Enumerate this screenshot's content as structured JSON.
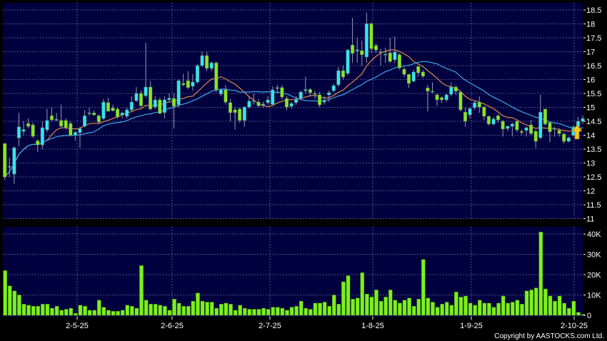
{
  "chart_data": [
    {
      "type": "candlestick",
      "ylim": [
        11,
        18.5
      ],
      "y_ticks": [
        "11",
        "11.5",
        "12",
        "12.5",
        "13",
        "13.5",
        "14",
        "14.5",
        "15",
        "15.5",
        "16",
        "16.5",
        "17",
        "17.5",
        "18",
        "18.5"
      ],
      "x_ticks": [
        "2-5-25",
        "2-6-25",
        "2-7-25",
        "1-8-25",
        "1-9-25",
        "2-10-25"
      ],
      "grid": true,
      "up_color": "#33e6f5",
      "down_color": "#88e822",
      "ma_colors": [
        "#e08a4a",
        "#3fa8e8"
      ],
      "marker": {
        "type": "up-arrow",
        "color": "#f5c518"
      },
      "ohlc": [
        [
          13.7,
          13.72,
          12.4,
          12.5
        ],
        [
          12.88,
          13.2,
          12.5,
          12.88
        ],
        [
          12.6,
          13.6,
          12.25,
          13.55
        ],
        [
          13.9,
          14.8,
          13.6,
          14.3
        ],
        [
          14.14,
          14.5,
          14.0,
          14.2
        ],
        [
          14.42,
          14.6,
          14.25,
          14.32
        ],
        [
          14.37,
          14.45,
          13.9,
          13.96
        ],
        [
          13.8,
          13.85,
          13.4,
          13.65
        ],
        [
          13.65,
          14.5,
          13.5,
          14.27
        ],
        [
          14.19,
          14.95,
          14.1,
          14.53
        ],
        [
          14.7,
          15.0,
          14.5,
          14.55
        ],
        [
          14.55,
          14.8,
          14.5,
          14.57
        ],
        [
          14.53,
          15.1,
          14.3,
          14.32
        ],
        [
          14.53,
          14.6,
          14.2,
          14.27
        ],
        [
          14.42,
          14.5,
          13.95,
          13.99
        ],
        [
          14.0,
          14.15,
          13.8,
          14.1
        ],
        [
          14.09,
          14.3,
          13.55,
          14.24
        ],
        [
          14.32,
          14.9,
          14.28,
          14.7
        ],
        [
          14.78,
          14.99,
          14.7,
          14.8
        ],
        [
          14.8,
          14.9,
          14.7,
          14.73
        ],
        [
          14.7,
          14.75,
          14.4,
          14.47
        ],
        [
          14.6,
          15.3,
          14.55,
          15.19
        ],
        [
          15.17,
          15.35,
          14.85,
          14.86
        ],
        [
          14.98,
          15.1,
          14.85,
          14.88
        ],
        [
          14.94,
          15.0,
          14.6,
          14.65
        ],
        [
          14.73,
          14.85,
          14.6,
          14.8
        ],
        [
          14.68,
          15.0,
          14.6,
          14.91
        ],
        [
          14.91,
          15.4,
          14.85,
          15.19
        ],
        [
          15.24,
          15.73,
          15.2,
          15.5
        ],
        [
          15.5,
          15.6,
          15.0,
          15.06
        ],
        [
          15.42,
          17.32,
          15.35,
          15.73
        ],
        [
          15.73,
          15.95,
          14.9,
          14.94
        ],
        [
          15.01,
          15.4,
          14.95,
          15.27
        ],
        [
          15.27,
          15.35,
          14.75,
          14.78
        ],
        [
          14.81,
          15.4,
          14.6,
          15.27
        ],
        [
          15.27,
          15.5,
          15.2,
          15.33
        ],
        [
          15.32,
          15.5,
          14.24,
          15.04
        ],
        [
          15.09,
          16.0,
          15.0,
          15.96
        ],
        [
          15.86,
          16.2,
          15.75,
          15.81
        ],
        [
          15.96,
          16.3,
          15.65,
          15.71
        ],
        [
          15.76,
          16.2,
          15.6,
          15.91
        ],
        [
          15.91,
          16.55,
          15.85,
          16.5
        ],
        [
          16.5,
          17.0,
          16.45,
          16.86
        ],
        [
          16.86,
          17.0,
          16.3,
          16.4
        ],
        [
          16.4,
          16.65,
          16.3,
          16.6
        ],
        [
          16.6,
          16.65,
          15.55,
          15.63
        ],
        [
          15.48,
          15.65,
          15.4,
          15.63
        ],
        [
          15.63,
          15.8,
          15.1,
          15.19
        ],
        [
          15.17,
          15.3,
          14.5,
          14.81
        ],
        [
          14.91,
          15.0,
          14.2,
          14.81
        ],
        [
          14.94,
          15.0,
          14.45,
          14.53
        ],
        [
          14.53,
          15.05,
          14.3,
          15.01
        ],
        [
          15.01,
          15.4,
          14.95,
          15.22
        ],
        [
          15.24,
          15.5,
          15.1,
          15.24
        ],
        [
          15.19,
          15.3,
          15.0,
          15.06
        ],
        [
          15.08,
          15.2,
          15.0,
          15.12
        ],
        [
          15.17,
          15.4,
          15.1,
          15.27
        ],
        [
          15.11,
          15.75,
          15.05,
          15.63
        ],
        [
          15.71,
          15.8,
          15.5,
          15.71
        ],
        [
          15.71,
          15.8,
          15.3,
          15.37
        ],
        [
          15.32,
          15.4,
          14.9,
          15.01
        ],
        [
          15.04,
          15.2,
          14.95,
          15.14
        ],
        [
          15.17,
          15.4,
          15.1,
          15.29
        ],
        [
          15.32,
          15.6,
          15.25,
          15.55
        ],
        [
          15.6,
          16.1,
          15.5,
          15.64
        ],
        [
          15.64,
          15.7,
          15.4,
          15.53
        ],
        [
          15.5,
          15.6,
          15.3,
          15.47
        ],
        [
          15.45,
          15.55,
          15.0,
          15.09
        ],
        [
          15.19,
          15.4,
          15.1,
          15.24
        ],
        [
          15.45,
          15.6,
          15.2,
          15.53
        ],
        [
          15.6,
          15.85,
          15.55,
          15.78
        ],
        [
          15.81,
          16.45,
          15.75,
          16.32
        ],
        [
          16.32,
          16.5,
          16.0,
          16.09
        ],
        [
          16.22,
          17.1,
          16.15,
          17.06
        ],
        [
          17.24,
          18.22,
          16.6,
          16.94
        ],
        [
          17.03,
          17.5,
          16.6,
          17.07
        ],
        [
          17.04,
          17.4,
          16.5,
          16.89
        ],
        [
          16.81,
          18.4,
          16.6,
          18.01
        ],
        [
          18.01,
          18.05,
          16.95,
          17.11
        ],
        [
          17.22,
          17.3,
          16.95,
          17.06
        ],
        [
          17.0,
          17.1,
          16.5,
          17.0
        ],
        [
          16.91,
          17.15,
          16.6,
          16.91
        ],
        [
          16.96,
          17.5,
          16.6,
          16.65
        ],
        [
          16.71,
          17.55,
          16.6,
          16.99
        ],
        [
          16.89,
          16.95,
          16.35,
          16.42
        ],
        [
          16.37,
          16.45,
          16.1,
          16.19
        ],
        [
          16.19,
          16.2,
          15.7,
          15.86
        ],
        [
          15.94,
          16.35,
          15.9,
          16.27
        ],
        [
          16.47,
          16.5,
          16.1,
          16.24
        ],
        [
          16.27,
          16.35,
          16.05,
          16.12
        ],
        [
          15.7,
          15.8,
          14.85,
          15.58
        ],
        [
          15.58,
          15.9,
          15.5,
          15.58
        ],
        [
          15.45,
          15.5,
          15.05,
          15.27
        ],
        [
          15.35,
          15.4,
          15.15,
          15.27
        ],
        [
          15.27,
          15.5,
          15.2,
          15.45
        ],
        [
          15.47,
          15.9,
          15.4,
          15.73
        ],
        [
          15.73,
          15.8,
          15.45,
          15.58
        ],
        [
          15.55,
          15.6,
          14.85,
          14.91
        ],
        [
          14.83,
          15.0,
          14.3,
          14.5
        ],
        [
          14.73,
          15.0,
          14.6,
          14.96
        ],
        [
          14.99,
          15.25,
          14.9,
          15.17
        ],
        [
          15.19,
          15.4,
          14.8,
          15.01
        ],
        [
          15.01,
          15.05,
          14.55,
          14.68
        ],
        [
          14.68,
          14.7,
          14.35,
          14.4
        ],
        [
          14.4,
          14.65,
          14.35,
          14.58
        ],
        [
          14.7,
          14.75,
          14.45,
          14.55
        ],
        [
          14.5,
          14.55,
          13.95,
          14.22
        ],
        [
          14.24,
          14.35,
          14.15,
          14.32
        ],
        [
          14.32,
          14.45,
          13.95,
          14.4
        ],
        [
          14.5,
          14.55,
          14.1,
          14.19
        ],
        [
          14.14,
          14.2,
          14.0,
          14.1
        ],
        [
          14.17,
          14.3,
          13.95,
          14.27
        ],
        [
          14.37,
          14.55,
          14.0,
          14.06
        ],
        [
          14.14,
          14.2,
          13.55,
          13.78
        ],
        [
          13.91,
          15.45,
          13.85,
          14.83
        ],
        [
          14.94,
          14.95,
          14.35,
          14.4
        ],
        [
          14.45,
          14.5,
          13.75,
          14.12
        ],
        [
          14.24,
          14.3,
          13.95,
          14.24
        ],
        [
          14.17,
          14.25,
          13.95,
          14.06
        ],
        [
          14.04,
          14.1,
          13.7,
          13.78
        ],
        [
          13.78,
          13.95,
          13.75,
          13.91
        ],
        [
          13.99,
          14.35,
          13.95,
          14.29
        ],
        [
          14.29,
          14.65,
          14.25,
          14.5
        ],
        [
          14.5,
          14.72,
          14.4,
          14.6
        ]
      ]
    },
    {
      "type": "bar",
      "ylim": [
        0,
        42
      ],
      "y_ticks": [
        "0",
        "10K",
        "20K",
        "30K",
        "40K"
      ],
      "unit": "K",
      "bar_color": "#7cf01c",
      "values": [
        22,
        14.5,
        12,
        10,
        5.5,
        5,
        4.5,
        4.5,
        5.5,
        5.5,
        3.5,
        4.5,
        2.5,
        3,
        3.5,
        1,
        5,
        4.5,
        2.5,
        2.5,
        7.5,
        4,
        2.5,
        2,
        2,
        2.5,
        5,
        4.5,
        3.5,
        24.5,
        7.5,
        5.5,
        5.5,
        5,
        4.5,
        2.5,
        8,
        6,
        4.5,
        4.5,
        7,
        11,
        7,
        6.5,
        6.5,
        3.5,
        5.5,
        6,
        5.5,
        2.5,
        5,
        3.5,
        3,
        3,
        3,
        3.5,
        3,
        4,
        4,
        3.5,
        2.5,
        4,
        4.5,
        7,
        3.5,
        3,
        6,
        6,
        6.5,
        4.5,
        10,
        5.5,
        16.5,
        19.5,
        8,
        8.5,
        21,
        10.5,
        9,
        12.5,
        7,
        9,
        12.5,
        7.5,
        6,
        7.5,
        8.5,
        4.5,
        8,
        27.5,
        8.5,
        6.5,
        4,
        5.5,
        6.5,
        5,
        11.5,
        9,
        9.5,
        6,
        5,
        7.5,
        6,
        6,
        4,
        6,
        9.5,
        6,
        6.5,
        7.5,
        5.5,
        12,
        12.5,
        13.5,
        41,
        13,
        9.5,
        7,
        9.5,
        6,
        3.5,
        7,
        1.5,
        0.5
      ]
    }
  ],
  "footer": {
    "copyright": "Copyright by AASTOCKS.com Ltd."
  }
}
